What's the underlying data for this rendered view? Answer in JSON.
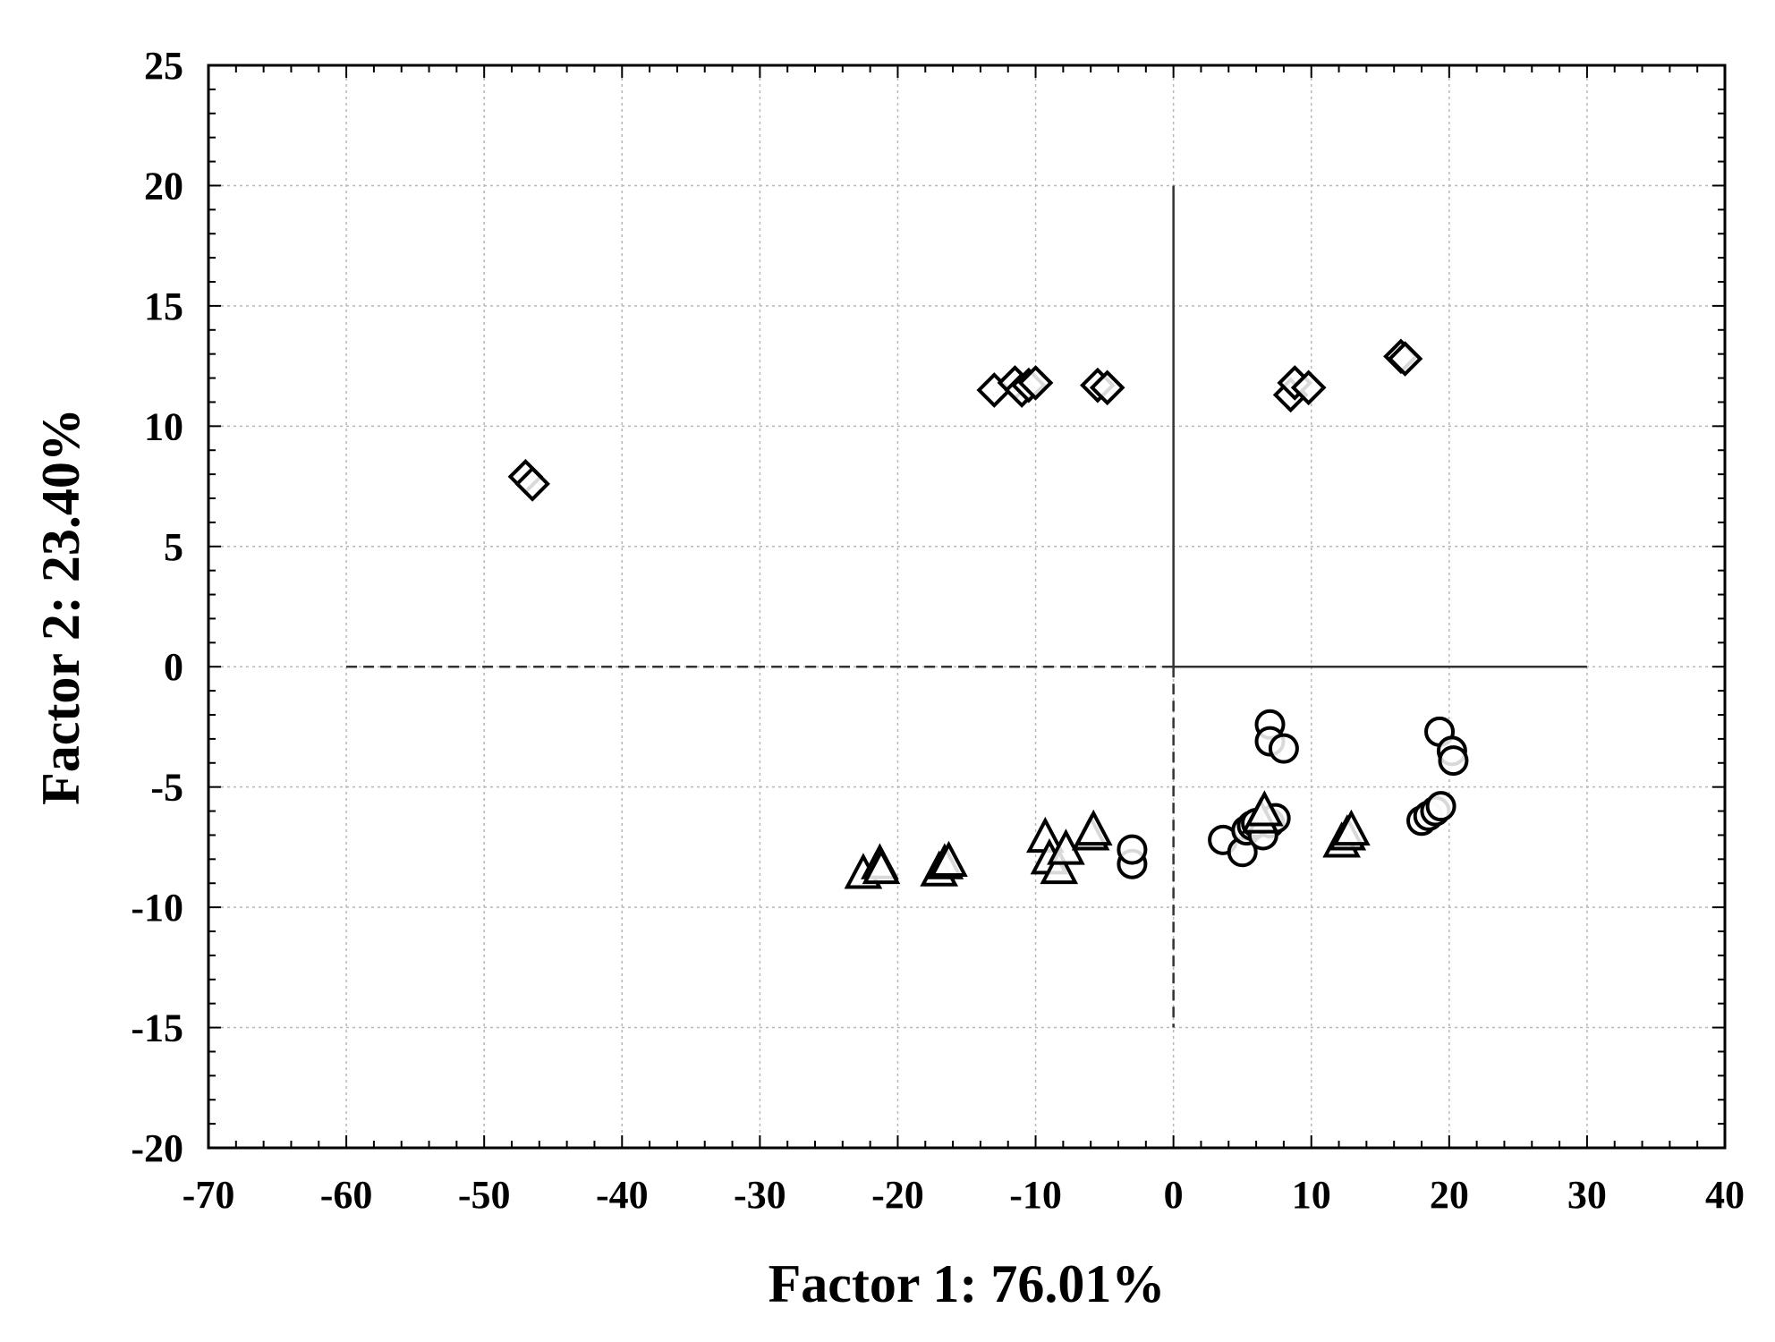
{
  "chart_data": {
    "type": "scatter",
    "xlabel": "Factor 1: 76.01%",
    "ylabel": "Factor 2: 23.40%",
    "xlim": [
      -70,
      40
    ],
    "ylim": [
      -20,
      25
    ],
    "xticks": [
      -70,
      -60,
      -50,
      -40,
      -30,
      -20,
      -10,
      0,
      10,
      20,
      30,
      40
    ],
    "yticks": [
      -20,
      -15,
      -10,
      -5,
      0,
      5,
      10,
      15,
      20,
      25
    ],
    "grid": true,
    "reference_lines": [
      {
        "style": "dashed",
        "from": [
          -60,
          0
        ],
        "to": [
          0,
          0
        ]
      },
      {
        "style": "solid",
        "from": [
          0,
          0
        ],
        "to": [
          30,
          0
        ]
      },
      {
        "style": "solid",
        "from": [
          0,
          0
        ],
        "to": [
          0,
          20
        ]
      },
      {
        "style": "dashed",
        "from": [
          0,
          0
        ],
        "to": [
          0,
          -15
        ]
      }
    ],
    "series": [
      {
        "marker": "diamond",
        "points": [
          [
            -47,
            7.9
          ],
          [
            -46.5,
            7.6
          ],
          [
            -13,
            11.5
          ],
          [
            -11.5,
            11.8
          ],
          [
            -11,
            11.5
          ],
          [
            -10.5,
            11.7
          ],
          [
            -10,
            11.8
          ],
          [
            -5.5,
            11.7
          ],
          [
            -4.8,
            11.6
          ],
          [
            8.5,
            11.3
          ],
          [
            8.8,
            11.8
          ],
          [
            9.8,
            11.6
          ],
          [
            16.5,
            12.9
          ],
          [
            16.8,
            12.8
          ]
        ]
      },
      {
        "marker": "circle",
        "points": [
          [
            7,
            -2.4
          ],
          [
            7,
            -3.1
          ],
          [
            8,
            -3.4
          ],
          [
            19.3,
            -2.7
          ],
          [
            20.2,
            -3.5
          ],
          [
            20.3,
            -3.9
          ],
          [
            18,
            -6.4
          ],
          [
            18.5,
            -6.2
          ],
          [
            19,
            -6
          ],
          [
            19.4,
            -5.8
          ],
          [
            3.6,
            -7.2
          ],
          [
            5,
            -7.7
          ],
          [
            5.3,
            -6.8
          ],
          [
            5.7,
            -6.6
          ],
          [
            6,
            -6.5
          ],
          [
            7,
            -6.5
          ],
          [
            7.4,
            -6.3
          ],
          [
            6.5,
            -7
          ],
          [
            -3,
            -8.2
          ],
          [
            -3,
            -7.6
          ]
        ]
      },
      {
        "marker": "triangle",
        "points": [
          [
            -22.5,
            -8.6
          ],
          [
            -21.3,
            -8.2
          ],
          [
            -21.2,
            -8.4
          ],
          [
            -17,
            -8.5
          ],
          [
            -16.6,
            -8.2
          ],
          [
            -16.3,
            -8.1
          ],
          [
            -9.3,
            -7.1
          ],
          [
            -9,
            -8
          ],
          [
            -8.3,
            -8.4
          ],
          [
            -7.8,
            -7.6
          ],
          [
            -6,
            -7
          ],
          [
            -5.8,
            -6.8
          ],
          [
            6.3,
            -6.3
          ],
          [
            6.6,
            -6.0
          ],
          [
            12.2,
            -7.3
          ],
          [
            12.6,
            -7
          ],
          [
            12.9,
            -6.8
          ]
        ]
      }
    ]
  }
}
